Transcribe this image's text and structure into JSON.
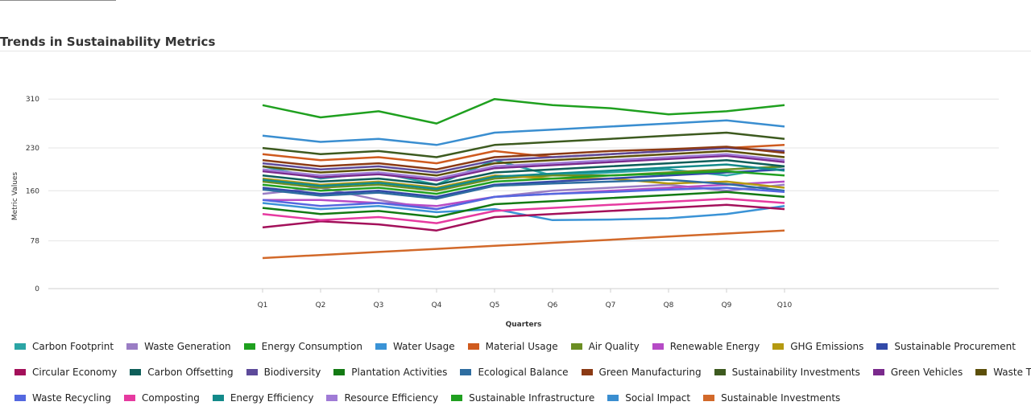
{
  "chart_data": {
    "type": "line",
    "title": "Trends in Sustainability Metrics",
    "xlabel": "Quarters",
    "ylabel": "Metric Values",
    "categories": [
      "Q1",
      "Q2",
      "Q3",
      "Q4",
      "Q5",
      "Q6",
      "Q7",
      "Q8",
      "Q9",
      "Q10"
    ],
    "yticks": [
      0,
      78,
      160,
      230,
      310
    ],
    "ylim": [
      0,
      330
    ],
    "grid": true,
    "legend_position": "bottom",
    "series": [
      {
        "name": "Carbon Footprint",
        "color": "#2ba5a5",
        "values": [
          200,
          180,
          190,
          170,
          210,
          185,
          190,
          195,
          185,
          200
        ]
      },
      {
        "name": "Waste Generation",
        "color": "#9a7dc4",
        "values": [
          155,
          165,
          145,
          130,
          150,
          160,
          165,
          170,
          160,
          170
        ]
      },
      {
        "name": "Energy Consumption",
        "color": "#1fa01f",
        "values": [
          300,
          280,
          290,
          270,
          310,
          300,
          295,
          285,
          290,
          300
        ]
      },
      {
        "name": "Water Usage",
        "color": "#3a93d6",
        "values": [
          140,
          130,
          135,
          125,
          130,
          112,
          113,
          115,
          122,
          135
        ]
      },
      {
        "name": "Material Usage",
        "color": "#cf5a1e",
        "values": [
          220,
          210,
          215,
          205,
          225,
          215,
          220,
          225,
          230,
          235
        ]
      },
      {
        "name": "Air Quality",
        "color": "#6b8e23",
        "values": [
          175,
          165,
          170,
          160,
          180,
          185,
          185,
          190,
          195,
          200
        ]
      },
      {
        "name": "Renewable Energy",
        "color": "#b64bc6",
        "values": [
          145,
          145,
          140,
          135,
          150,
          155,
          160,
          165,
          170,
          175
        ]
      },
      {
        "name": "GHG Emissions",
        "color": "#b59a10",
        "values": [
          180,
          170,
          175,
          165,
          185,
          180,
          180,
          172,
          175,
          165
        ]
      },
      {
        "name": "Sustainable Procurement",
        "color": "#3249a8",
        "values": [
          165,
          155,
          160,
          150,
          170,
          175,
          180,
          185,
          190,
          195
        ]
      },
      {
        "name": "Circular Economy",
        "color": "#a3105a",
        "values": [
          100,
          110,
          105,
          95,
          117,
          122,
          127,
          132,
          137,
          130
        ]
      },
      {
        "name": "Carbon Offsetting",
        "color": "#0e5e59",
        "values": [
          185,
          175,
          180,
          170,
          190,
          195,
          200,
          205,
          210,
          200
        ]
      },
      {
        "name": "Biodiversity",
        "color": "#5d4a9a",
        "values": [
          205,
          195,
          200,
          190,
          210,
          215,
          220,
          225,
          230,
          225
        ]
      },
      {
        "name": "Plantation Activities",
        "color": "#137a13",
        "values": [
          132,
          122,
          127,
          117,
          138,
          143,
          148,
          153,
          158,
          150
        ]
      },
      {
        "name": "Ecological Balance",
        "color": "#2e6da0",
        "values": [
          162,
          152,
          157,
          147,
          168,
          172,
          175,
          178,
          171,
          160
        ]
      },
      {
        "name": "Green Manufacturing",
        "color": "#8b3a14",
        "values": [
          210,
          200,
          205,
          195,
          215,
          220,
          225,
          228,
          232,
          222
        ]
      },
      {
        "name": "Sustainability Investments",
        "color": "#3d5a1f",
        "values": [
          230,
          220,
          225,
          215,
          235,
          240,
          245,
          250,
          255,
          245
        ]
      },
      {
        "name": "Green Vehicles",
        "color": "#7a2a8c",
        "values": [
          192,
          182,
          187,
          177,
          197,
          202,
          207,
          212,
          217,
          207
        ]
      },
      {
        "name": "Waste Treatment",
        "color": "#5c4f0a",
        "values": [
          200,
          190,
          195,
          185,
          205,
          210,
          215,
          220,
          225,
          215
        ]
      },
      {
        "name": "Waste Recycling",
        "color": "#5468e0",
        "values": [
          145,
          135,
          140,
          130,
          150,
          155,
          158,
          162,
          165,
          158
        ]
      },
      {
        "name": "Composting",
        "color": "#e63aa0",
        "values": [
          122,
          112,
          117,
          107,
          127,
          132,
          137,
          142,
          147,
          140
        ]
      },
      {
        "name": "Energy Efficiency",
        "color": "#138a8a",
        "values": [
          178,
          168,
          173,
          163,
          183,
          188,
          193,
          198,
          203,
          193
        ]
      },
      {
        "name": "Resource Efficiency",
        "color": "#a07bd6",
        "values": [
          195,
          185,
          190,
          180,
          200,
          205,
          210,
          215,
          220,
          210
        ]
      },
      {
        "name": "Sustainable Infrastructure",
        "color": "#20a020",
        "values": [
          170,
          160,
          165,
          155,
          175,
          180,
          185,
          188,
          192,
          185
        ]
      },
      {
        "name": "Social Impact",
        "color": "#3a8ed0",
        "values": [
          250,
          240,
          245,
          235,
          255,
          260,
          265,
          270,
          275,
          265
        ]
      },
      {
        "name": "Sustainable Investments",
        "color": "#d2692a",
        "values": [
          50,
          55,
          60,
          65,
          70,
          75,
          80,
          85,
          90,
          95
        ]
      }
    ]
  }
}
